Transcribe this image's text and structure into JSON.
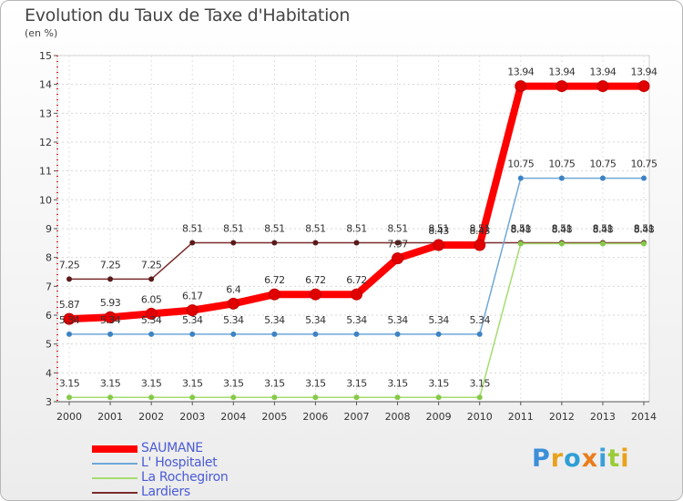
{
  "title": "Evolution du Taux de Taxe d'Habitation",
  "subtitle": "(en %)",
  "brand": {
    "letters": [
      "P",
      "r",
      "o",
      "x",
      "i",
      "t",
      "i"
    ],
    "colors": [
      "#3a8fd8",
      "#e8a21a",
      "#2f9fd5",
      "#eb7d1c",
      "#3aa0d9",
      "#9ccb3a",
      "#e8a21a"
    ]
  },
  "chart_data": {
    "type": "line",
    "title": "Evolution du Taux de Taxe d'Habitation",
    "ylabel": "(en %)",
    "xlabel": "",
    "x": [
      "2000",
      "2001",
      "2002",
      "2003",
      "2004",
      "2005",
      "2006",
      "2007",
      "2008",
      "2009",
      "2010",
      "2011",
      "2012",
      "2013",
      "2014"
    ],
    "ylim": [
      3,
      15
    ],
    "yticks": [
      "3",
      "4",
      "5",
      "6",
      "7",
      "8",
      "9",
      "10",
      "11",
      "12",
      "13",
      "14",
      "15"
    ],
    "series": [
      {
        "name": "Lardiers",
        "color": "#7a2b2b",
        "marker": "#5a1a1a",
        "width": 1.5,
        "dot": 3,
        "values": [
          7.25,
          7.25,
          7.25,
          8.51,
          8.51,
          8.51,
          8.51,
          8.51,
          8.51,
          8.51,
          8.51,
          8.51,
          8.51,
          8.51,
          8.51
        ],
        "labels": [
          "7.25",
          "7.25",
          "7.25",
          "8.51",
          "8.51",
          "8.51",
          "8.51",
          "8.51",
          "8.51",
          "8.51",
          "8.51",
          "8.51",
          "8.51",
          "8.51",
          "8.51"
        ]
      },
      {
        "name": "La Rochegiron",
        "color": "#a5dd6f",
        "marker": "#86c94a",
        "width": 1.5,
        "dot": 3,
        "values": [
          3.15,
          3.15,
          3.15,
          3.15,
          3.15,
          3.15,
          3.15,
          3.15,
          3.15,
          3.15,
          3.15,
          8.48,
          8.48,
          8.48,
          8.48
        ],
        "labels": [
          "3.15",
          "3.15",
          "3.15",
          "3.15",
          "3.15",
          "3.15",
          "3.15",
          "3.15",
          "3.15",
          "3.15",
          "3.15",
          "8.48",
          "8.48",
          "8.48",
          "8.48"
        ]
      },
      {
        "name": "L' Hospitalet",
        "color": "#6fa8d8",
        "marker": "#3d83c4",
        "width": 1.5,
        "dot": 3,
        "values": [
          5.34,
          5.34,
          5.34,
          5.34,
          5.34,
          5.34,
          5.34,
          5.34,
          5.34,
          5.34,
          5.34,
          10.75,
          10.75,
          10.75,
          10.75
        ],
        "labels": [
          "5.34",
          "5.34",
          "5.34",
          "5.34",
          "5.34",
          "5.34",
          "5.34",
          "5.34",
          "5.34",
          "5.34",
          "5.34",
          "10.75",
          "10.75",
          "10.75",
          "10.75"
        ]
      },
      {
        "name": "SAUMANE",
        "color": "#ff0000",
        "marker": "#e00000",
        "width": 8,
        "dot": 6,
        "values": [
          5.87,
          5.93,
          6.05,
          6.17,
          6.4,
          6.72,
          6.72,
          6.72,
          7.97,
          8.43,
          8.43,
          13.94,
          13.94,
          13.94,
          13.94
        ],
        "labels": [
          "5.87",
          "5.93",
          "6.05",
          "6.17",
          "6.4",
          "6.72",
          "6.72",
          "6.72",
          "7.97",
          "8.43",
          "8.43",
          "13.94",
          "13.94",
          "13.94",
          "13.94"
        ]
      }
    ],
    "legend": [
      "SAUMANE",
      "L' Hospitalet",
      "La Rochegiron",
      "Lardiers"
    ],
    "legend_colors": [
      "#ff0000",
      "#6fa8d8",
      "#a5dd6f",
      "#7a2b2b"
    ],
    "grid": true,
    "legend_position": "bottom-left"
  }
}
